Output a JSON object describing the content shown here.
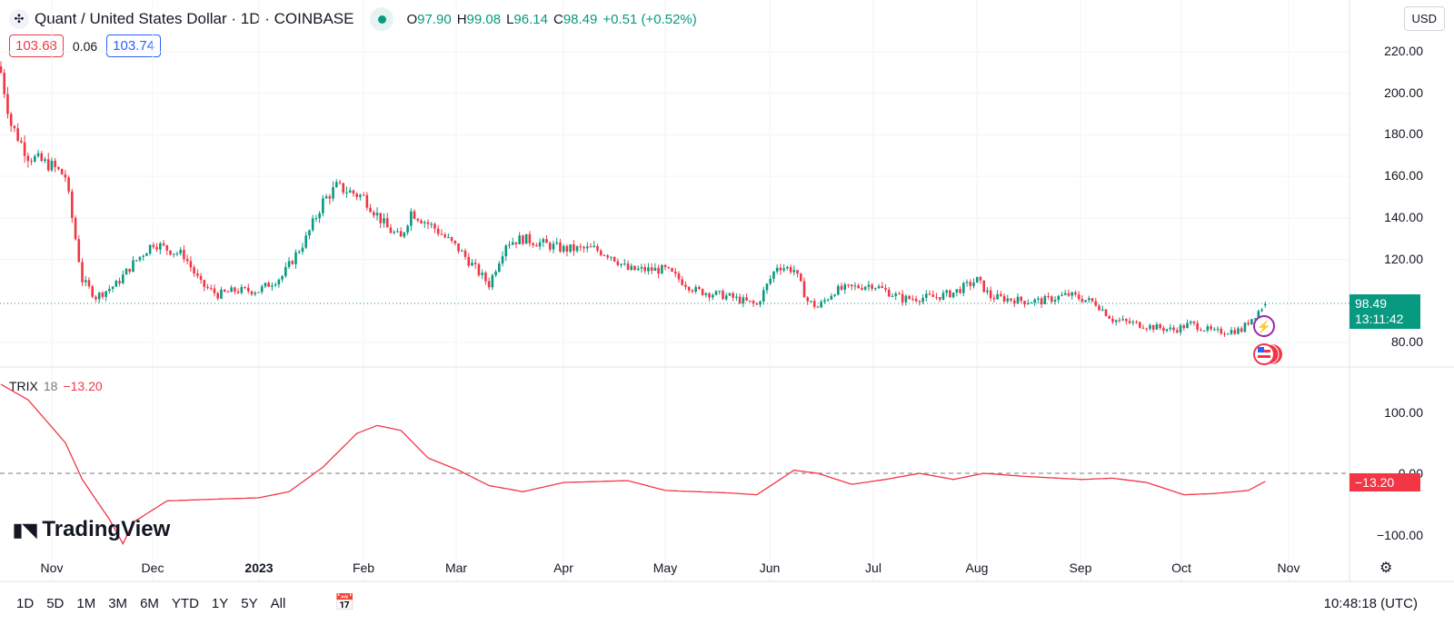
{
  "header": {
    "title": "Quant / United States Dollar · 1D · COINBASE",
    "o_label": "O",
    "o": "97.90",
    "h_label": "H",
    "h": "99.08",
    "l_label": "L",
    "l": "96.14",
    "c_label": "C",
    "c": "98.49",
    "change": "+0.51 (+0.52%)",
    "bid": "103.68",
    "spread": "0.06",
    "ask": "103.74",
    "currency": "USD"
  },
  "price_axis": [
    "220.00",
    "200.00",
    "180.00",
    "160.00",
    "140.00",
    "120.00",
    "80.00"
  ],
  "last_price": {
    "value": "98.49",
    "countdown": "13:11:42"
  },
  "trix": {
    "name": "TRIX",
    "length": "18",
    "value": "−13.20",
    "axis": [
      "100.00",
      "0.00",
      "−100.00"
    ],
    "label": "−13.20"
  },
  "x_axis": [
    "Nov",
    "Dec",
    "2023",
    "Feb",
    "Mar",
    "Apr",
    "May",
    "Jun",
    "Jul",
    "Aug",
    "Sep",
    "Oct",
    "Nov"
  ],
  "watermark": "TradingView",
  "bottom": {
    "ranges": [
      "1D",
      "5D",
      "1M",
      "3M",
      "6M",
      "YTD",
      "1Y",
      "5Y",
      "All"
    ],
    "time": "10:48:18 (UTC)"
  },
  "colors": {
    "up": "#089981",
    "down": "#f23645",
    "trix": "#f23645"
  },
  "chart_data": {
    "type": "candlestick",
    "title": "Quant / United States Dollar · 1D · COINBASE",
    "ylim": [
      72,
      226
    ],
    "close_keypoints": [
      [
        0,
        210
      ],
      [
        3,
        185
      ],
      [
        8,
        170
      ],
      [
        15,
        165
      ],
      [
        19,
        160
      ],
      [
        22,
        130
      ],
      [
        24,
        110
      ],
      [
        28,
        102
      ],
      [
        34,
        108
      ],
      [
        39,
        118
      ],
      [
        45,
        128
      ],
      [
        49,
        125
      ],
      [
        54,
        122
      ],
      [
        59,
        108
      ],
      [
        64,
        103
      ],
      [
        69,
        105
      ],
      [
        76,
        105
      ],
      [
        83,
        112
      ],
      [
        90,
        130
      ],
      [
        95,
        148
      ],
      [
        99,
        155
      ],
      [
        107,
        150
      ],
      [
        114,
        135
      ],
      [
        118,
        130
      ],
      [
        121,
        143
      ],
      [
        128,
        135
      ],
      [
        135,
        125
      ],
      [
        144,
        108
      ],
      [
        149,
        128
      ],
      [
        154,
        130
      ],
      [
        166,
        125
      ],
      [
        175,
        125
      ],
      [
        180,
        122
      ],
      [
        185,
        115
      ],
      [
        196,
        115
      ],
      [
        205,
        105
      ],
      [
        215,
        102
      ],
      [
        223,
        98
      ],
      [
        229,
        117
      ],
      [
        234,
        115
      ],
      [
        238,
        100
      ],
      [
        241,
        97
      ],
      [
        246,
        105
      ],
      [
        257,
        108
      ],
      [
        266,
        101
      ],
      [
        276,
        102
      ],
      [
        281,
        104
      ],
      [
        288,
        110
      ],
      [
        292,
        102
      ],
      [
        302,
        100
      ],
      [
        307,
        100
      ],
      [
        315,
        103
      ],
      [
        323,
        99
      ],
      [
        328,
        91
      ],
      [
        338,
        88
      ],
      [
        346,
        86
      ],
      [
        351,
        89
      ],
      [
        358,
        85
      ],
      [
        366,
        86
      ],
      [
        368,
        90
      ],
      [
        373,
        98.49
      ]
    ],
    "trix_keypoints": [
      [
        0,
        145
      ],
      [
        8,
        120
      ],
      [
        19,
        50
      ],
      [
        24,
        -10
      ],
      [
        32,
        -75
      ],
      [
        36,
        -115
      ],
      [
        39,
        -80
      ],
      [
        49,
        -45
      ],
      [
        64,
        -42
      ],
      [
        76,
        -40
      ],
      [
        85,
        -30
      ],
      [
        95,
        10
      ],
      [
        105,
        65
      ],
      [
        111,
        78
      ],
      [
        118,
        70
      ],
      [
        126,
        25
      ],
      [
        135,
        5
      ],
      [
        144,
        -20
      ],
      [
        154,
        -30
      ],
      [
        166,
        -15
      ],
      [
        185,
        -12
      ],
      [
        196,
        -28
      ],
      [
        215,
        -32
      ],
      [
        223,
        -35
      ],
      [
        234,
        5
      ],
      [
        241,
        0
      ],
      [
        251,
        -18
      ],
      [
        261,
        -10
      ],
      [
        271,
        0
      ],
      [
        281,
        -10
      ],
      [
        290,
        0
      ],
      [
        302,
        -5
      ],
      [
        319,
        -10
      ],
      [
        328,
        -8
      ],
      [
        338,
        -15
      ],
      [
        349,
        -35
      ],
      [
        358,
        -33
      ],
      [
        368,
        -28
      ],
      [
        373,
        -13.2
      ]
    ]
  }
}
